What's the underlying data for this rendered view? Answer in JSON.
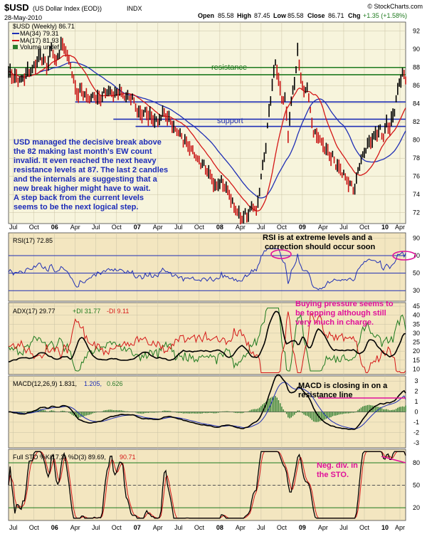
{
  "header": {
    "symbol": "$USD",
    "name": "(US Dollar Index (EOD))",
    "exchange": "INDX",
    "date": "28-May-2010",
    "open_label": "Open",
    "open": "85.58",
    "high_label": "High",
    "high": "87.45",
    "low_label": "Low",
    "low": "85.58",
    "close_label": "Close",
    "close": "86.71",
    "chg_label": "Chg",
    "chg": "+1.35 (+1.58%)",
    "brand": "© StockCharts.com"
  },
  "colors": {
    "price_bg": "#f7f4dc",
    "ind_bg": "#f3e6c0",
    "price_line": "#000000",
    "ma34": "#1f2fb5",
    "ma17": "#d41717",
    "resistance": "#1e7a1e",
    "support": "#1f2fb5",
    "annot_blue": "#1c2bb8",
    "annot_magenta": "#e0119a",
    "macd_hist": "#2e7d2e",
    "adx": "#000000",
    "pdi": "#1e7a1e",
    "mdi": "#d41717",
    "rsi": "#1f2fb5"
  },
  "legends": {
    "price": "$USD (Weekly) 86.71",
    "ma34": "MA(34) 79.31",
    "ma17": "MA(17) 81.93",
    "volume": "Volume undef",
    "rsi": "RSI(17) 72.85",
    "adx_a": "ADX(17) 29.77",
    "adx_b": "+DI 31.77",
    "adx_c": "-DI 9.11",
    "macd_a": "MACD(12,26,9) 1.831,",
    "macd_b": "1.205,",
    "macd_c": "0.626",
    "sto_a": "Full STO %K(17,3) %D(3) 89.69,",
    "sto_b": "90.71"
  },
  "annotations": {
    "resistance": "resistance",
    "support": "support",
    "main_text": [
      "USD managed the decisive break above",
      "the 82 making last month's EW count",
      "invalid. It even reached the next heavy",
      "resistance levels at 87. The last 2 candles",
      "and the internals are suggesting that a",
      "new break higher might have to wait.",
      "A step back from the current levels",
      "seems to be the next logical step."
    ],
    "rsi_text": [
      "RSI is at extreme levels and a",
      "correction should occur soon"
    ],
    "adx_text": [
      "Buying pressure seems to",
      "be topping although still",
      "very much in charge."
    ],
    "macd_text": [
      "MACD is closing in on a",
      "resistance line"
    ],
    "sto_text": [
      "Neg. div. in",
      "the STO."
    ]
  },
  "chart_data": {
    "type": "line",
    "x_ticks": [
      "Jul",
      "Oct",
      "06",
      "Apr",
      "Jul",
      "Oct",
      "07",
      "Apr",
      "Jul",
      "Oct",
      "08",
      "Apr",
      "Jul",
      "Oct",
      "09",
      "Apr",
      "Jul",
      "Oct",
      "10",
      "Apr"
    ],
    "price": {
      "y_ticks": [
        72,
        74,
        76,
        78,
        80,
        82,
        84,
        86,
        88,
        90,
        92
      ],
      "ylim": [
        70.8,
        93
      ],
      "resistance_levels": [
        87.2,
        88.0
      ],
      "support_levels": [
        81.5,
        82.3,
        84.2
      ],
      "keypoints": [
        [
          0,
          87.5
        ],
        [
          4,
          87.0
        ],
        [
          8,
          86.5
        ],
        [
          12,
          87.5
        ],
        [
          16,
          88.0
        ],
        [
          20,
          89.5
        ],
        [
          24,
          88.0
        ],
        [
          27,
          90.2
        ],
        [
          30,
          88.5
        ],
        [
          33,
          90.5
        ],
        [
          36,
          90.0
        ],
        [
          40,
          87.5
        ],
        [
          43,
          85.0
        ],
        [
          46,
          85.5
        ],
        [
          50,
          84.5
        ],
        [
          54,
          85.0
        ],
        [
          58,
          84.5
        ],
        [
          62,
          85.5
        ],
        [
          66,
          85.0
        ],
        [
          70,
          85.5
        ],
        [
          74,
          84.5
        ],
        [
          78,
          84.5
        ],
        [
          82,
          83.0
        ],
        [
          86,
          83.0
        ],
        [
          90,
          82.5
        ],
        [
          94,
          82.0
        ],
        [
          98,
          83.0
        ],
        [
          102,
          82.0
        ],
        [
          106,
          81.0
        ],
        [
          110,
          80.0
        ],
        [
          114,
          79.5
        ],
        [
          118,
          78.0
        ],
        [
          122,
          77.5
        ],
        [
          126,
          76.5
        ],
        [
          130,
          75.0
        ],
        [
          134,
          75.5
        ],
        [
          138,
          74.5
        ],
        [
          142,
          72.5
        ],
        [
          146,
          71.5
        ],
        [
          150,
          71.8
        ],
        [
          154,
          73.0
        ],
        [
          156,
          72.0
        ],
        [
          158,
          74.5
        ],
        [
          160,
          77.0
        ],
        [
          162,
          79.5
        ],
        [
          164,
          83.0
        ],
        [
          166,
          86.0
        ],
        [
          168,
          88.5
        ],
        [
          170,
          86.5
        ],
        [
          172,
          84.5
        ],
        [
          174,
          84.5
        ],
        [
          176,
          80.5
        ],
        [
          178,
          84.0
        ],
        [
          180,
          86.5
        ],
        [
          182,
          89.5
        ],
        [
          184,
          87.0
        ],
        [
          186,
          85.0
        ],
        [
          188,
          86.0
        ],
        [
          190,
          83.0
        ],
        [
          192,
          81.0
        ],
        [
          194,
          80.5
        ],
        [
          198,
          79.5
        ],
        [
          202,
          78.5
        ],
        [
          206,
          77.5
        ],
        [
          210,
          76.5
        ],
        [
          214,
          75.2
        ],
        [
          218,
          74.7
        ],
        [
          220,
          76.5
        ],
        [
          222,
          78.0
        ],
        [
          226,
          79.5
        ],
        [
          230,
          80.5
        ],
        [
          234,
          81.0
        ],
        [
          236,
          80.5
        ],
        [
          238,
          82.0
        ],
        [
          240,
          81.5
        ],
        [
          242,
          82.5
        ],
        [
          244,
          84.5
        ],
        [
          246,
          86.5
        ],
        [
          248,
          87.2
        ],
        [
          250,
          86.9
        ]
      ]
    },
    "rsi": {
      "y_ticks": [
        30,
        50,
        70,
        90
      ],
      "ylim": [
        18,
        96
      ],
      "levels": [
        30,
        50,
        70
      ],
      "value": 72.85
    },
    "adx": {
      "y_ticks": [
        10,
        15,
        20,
        25,
        30,
        35,
        40,
        45
      ],
      "ylim": [
        7,
        47
      ],
      "adx": 29.77,
      "pdi": 31.77,
      "mdi": 9.11
    },
    "macd": {
      "y_ticks": [
        -3,
        -2,
        -1,
        0,
        1,
        2,
        3
      ],
      "ylim": [
        -3.5,
        3.5
      ],
      "macd": 1.831,
      "signal": 1.205,
      "hist": 0.626,
      "resistance_level": 2.2
    },
    "sto": {
      "y_ticks": [
        20,
        50,
        80
      ],
      "ylim": [
        3,
        98
      ],
      "levels": [
        20,
        50,
        80
      ],
      "k": 89.69,
      "d": 90.71
    }
  }
}
